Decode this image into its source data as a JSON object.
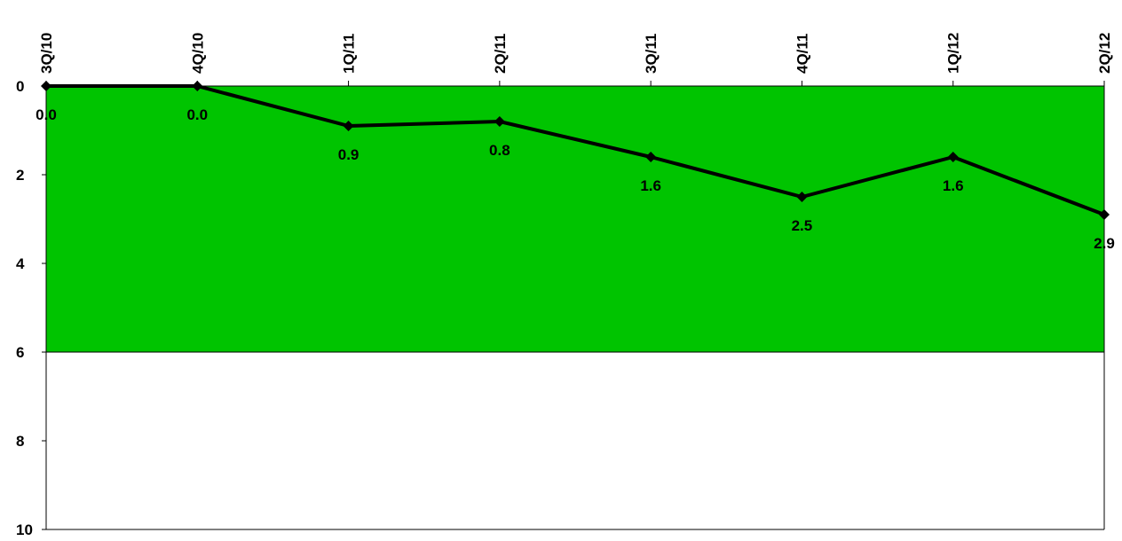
{
  "chart_data": {
    "type": "line",
    "title": "",
    "xlabel": "",
    "ylabel": "",
    "x_axis_position": "top",
    "y_axis_inverted": true,
    "ylim": [
      0,
      10
    ],
    "y_ticks": [
      "0",
      "2",
      "4",
      "6",
      "8",
      "10"
    ],
    "categories": [
      "3Q/10",
      "4Q/10",
      "1Q/11",
      "2Q/11",
      "3Q/11",
      "4Q/11",
      "1Q/12",
      "2Q/12"
    ],
    "series": [
      {
        "values": [
          0.0,
          0.0,
          0.9,
          0.8,
          1.6,
          2.5,
          1.6,
          2.9
        ],
        "labels": [
          "0.0",
          "0.0",
          "0.9",
          "0.8",
          "1.6",
          "2.5",
          "1.6",
          "2.9"
        ]
      }
    ],
    "band": {
      "from": 0,
      "to": 6,
      "color": "#00c400"
    },
    "grid": false,
    "colors": {
      "line": "#000000",
      "background": "#ffffff"
    }
  }
}
